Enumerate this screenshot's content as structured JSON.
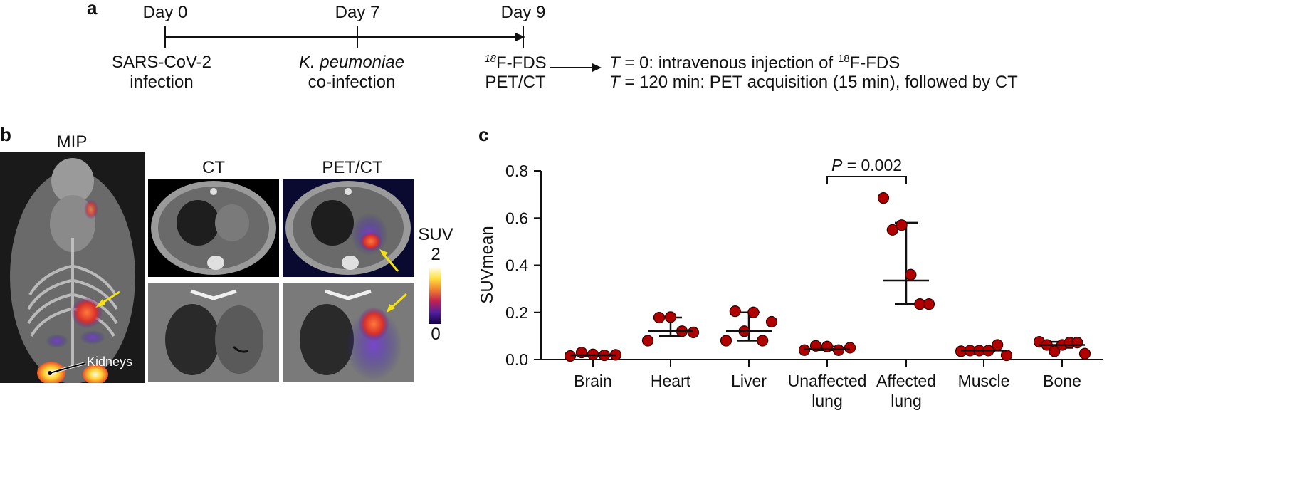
{
  "panel_a": {
    "letter": "a",
    "timepoints": [
      {
        "day": "Day 0",
        "event": [
          "SARS-CoV-2",
          "infection"
        ]
      },
      {
        "day": "Day 7",
        "event_italic": "K. peumoniae",
        "event": [
          "co-infection"
        ]
      },
      {
        "day": "Day 9",
        "event_sup": "18",
        "event": [
          "F-FDS",
          "PET/CT"
        ]
      }
    ],
    "protocol": {
      "line1_prefix": "T",
      "line1_text": " = 0: intravenous injection of ",
      "line1_sup": "18",
      "line1_suffix": "F-FDS",
      "line2_prefix": "T",
      "line2_text": " = 120 min: PET acquisition (15 min), followed by CT"
    }
  },
  "panel_b": {
    "letter": "b",
    "mip_title": "MIP",
    "ct_title": "CT",
    "petct_title": "PET/CT",
    "kidneys_label": "Kidneys",
    "colorbar": {
      "title": "SUV",
      "max": "2",
      "min": "0"
    },
    "colors": {
      "arrow": "#f5e216",
      "hot": "#e8502a",
      "cold": "#3a2ad0"
    }
  },
  "chart_data": {
    "type": "scatter",
    "letter": "c",
    "ylabel": "SUVmean",
    "ylim": [
      0,
      0.8
    ],
    "yticks": [
      "0.0",
      "0.2",
      "0.4",
      "0.6",
      "0.8"
    ],
    "categories": [
      {
        "lines": [
          "Brain"
        ]
      },
      {
        "lines": [
          "Heart"
        ]
      },
      {
        "lines": [
          "Liver"
        ]
      },
      {
        "lines": [
          "Unaffected",
          "lung"
        ]
      },
      {
        "lines": [
          "Affected",
          "lung"
        ]
      },
      {
        "lines": [
          "Muscle"
        ]
      },
      {
        "lines": [
          "Bone"
        ]
      }
    ],
    "points": [
      [
        0.015,
        0.03,
        0.022,
        0.018,
        0.02
      ],
      [
        0.08,
        0.178,
        0.18,
        0.12,
        0.115
      ],
      [
        0.08,
        0.205,
        0.12,
        0.2,
        0.08,
        0.16
      ],
      [
        0.04,
        0.058,
        0.055,
        0.04,
        0.05
      ],
      [
        0.685,
        0.55,
        0.57,
        0.36,
        0.235,
        0.235
      ],
      [
        0.035,
        0.038,
        0.038,
        0.038,
        0.062,
        0.018
      ],
      [
        0.075,
        0.062,
        0.035,
        0.062,
        0.072,
        0.072,
        0.025
      ]
    ],
    "median": [
      0.018,
      0.12,
      0.12,
      0.045,
      0.335,
      0.038,
      0.062
    ],
    "iqr": [
      [
        0.015,
        0.025
      ],
      [
        0.1,
        0.178
      ],
      [
        0.08,
        0.2
      ],
      [
        0.04,
        0.055
      ],
      [
        0.235,
        0.58
      ],
      [
        0.035,
        0.038
      ],
      [
        0.05,
        0.075
      ]
    ],
    "annotation": {
      "italic": "P",
      "text": " = 0.002",
      "between": [
        3,
        4
      ]
    },
    "point_color": "#b00000"
  }
}
